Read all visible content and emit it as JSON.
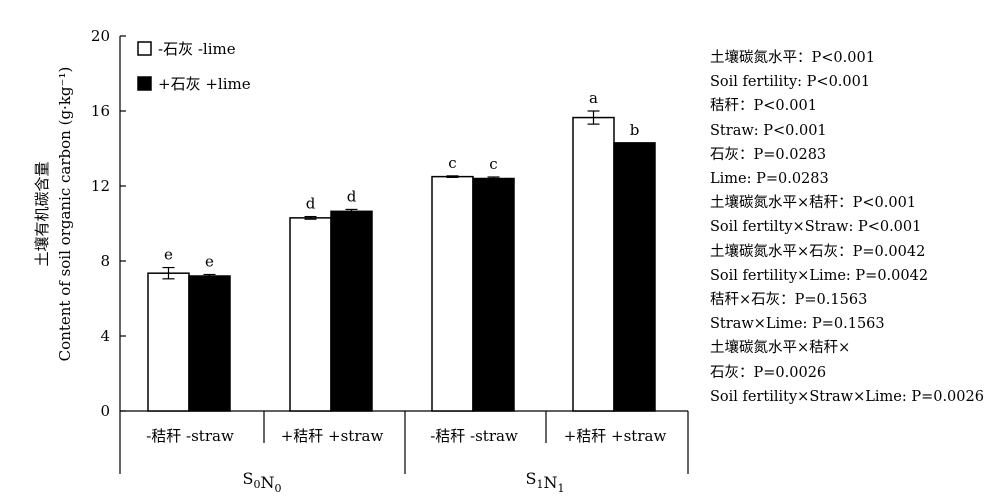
{
  "chart_data": {
    "type": "bar",
    "ylabel_cn": "土壤有机碳含量",
    "ylabel_en": "Content of soil organic carbon (g·kg⁻¹)",
    "ylim": [
      0,
      20
    ],
    "yticks": [
      "0",
      "4",
      "8",
      "12",
      "16",
      "20"
    ],
    "grid": false,
    "legend_position": "top-left",
    "categories": [
      "-秸秆 -straw",
      "+秸秆 +straw",
      "-秸秆 -straw",
      "+秸秆 +straw"
    ],
    "groups": [
      "S0N0",
      "S1N1"
    ],
    "series": [
      {
        "name": "-石灰 -lime",
        "color": "#ffffff",
        "values": [
          7.35,
          10.3,
          12.5,
          15.65
        ],
        "errors": [
          0.3,
          0.07,
          0.04,
          0.35
        ],
        "letters": [
          "e",
          "d",
          "c",
          "a"
        ]
      },
      {
        "name": "+石灰 +lime",
        "color": "#000000",
        "values": [
          7.2,
          10.65,
          12.4,
          14.3
        ],
        "errors": [
          0.08,
          0.1,
          0.08,
          0
        ],
        "letters": [
          "e",
          "d",
          "c",
          "b"
        ]
      }
    ]
  },
  "stats": [
    "土壤碳氮水平：P<0.001",
    "Soil fertility: P<0.001",
    "秸秆：P<0.001",
    "Straw: P<0.001",
    "石灰：P=0.0283",
    "Lime: P=0.0283",
    "土壤碳氮水平×秸秆：P<0.001",
    "Soil fertilty×Straw: P<0.001",
    "土壤碳氮水平×石灰：P=0.0042",
    "Soil fertility×Lime: P=0.0042",
    "秸秆×石灰：P=0.1563",
    "Straw×Lime: P=0.1563",
    "土壤碳氮水平×秸秆×",
    "石灰：P=0.0026",
    "Soil fertility×Straw×Lime: P=0.0026"
  ]
}
